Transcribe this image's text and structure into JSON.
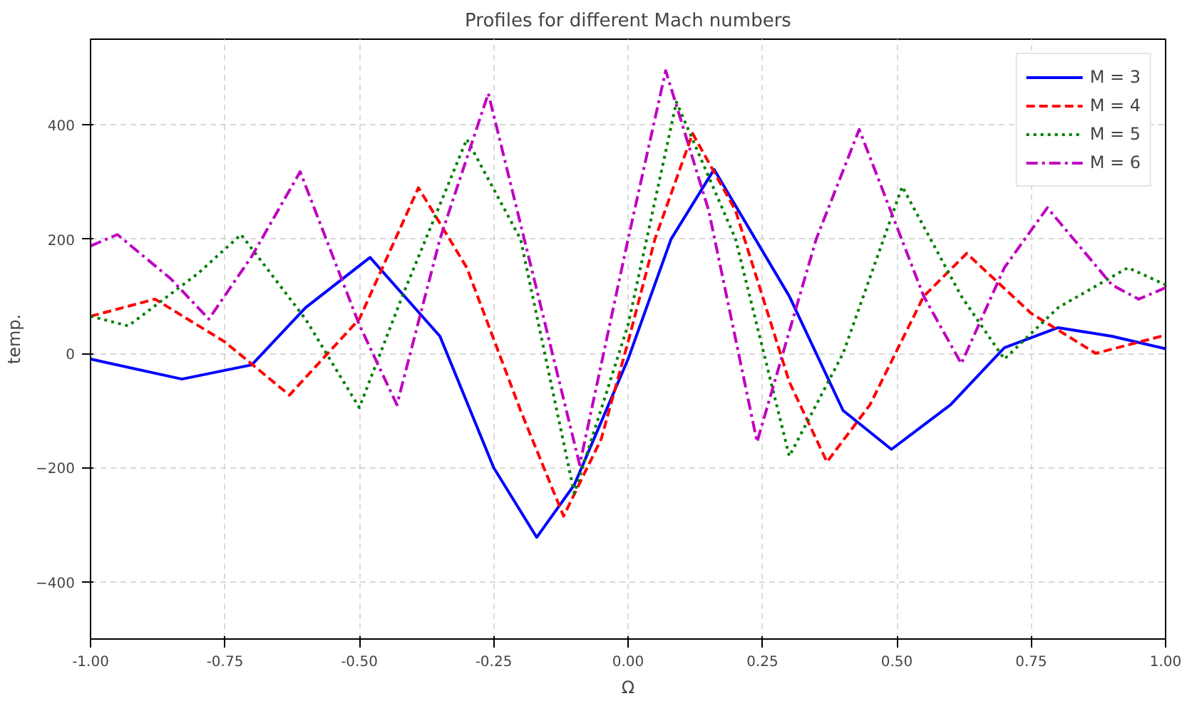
{
  "chart_data": {
    "type": "line",
    "title": "Profiles for different Mach numbers",
    "xlabel": "Ω",
    "ylabel": "temp.",
    "xlim": [
      -1,
      1
    ],
    "ylim": [
      -500,
      550
    ],
    "xticks": [
      {
        "value": -1,
        "label": "-1.00"
      },
      {
        "value": -0.75,
        "label": "-0.75"
      },
      {
        "value": -0.5,
        "label": "-0.50"
      },
      {
        "value": -0.25,
        "label": "-0.25"
      },
      {
        "value": 0,
        "label": "0.00"
      },
      {
        "value": 0.25,
        "label": "0.25"
      },
      {
        "value": 0.5,
        "label": "0.50"
      },
      {
        "value": 0.75,
        "label": "0.75"
      },
      {
        "value": 1,
        "label": "1.00"
      }
    ],
    "yticks": [
      -400,
      -200,
      0,
      200,
      400
    ],
    "grid": true,
    "legend": "top right",
    "marker": "none",
    "series": [
      {
        "name": "M = 3",
        "color": "#0000ff",
        "line_style": "solid",
        "x": [
          -1,
          -0.83,
          -0.7,
          -0.6,
          -0.48,
          -0.35,
          -0.25,
          -0.17,
          -0.1,
          0,
          0.08,
          0.16,
          0.3,
          0.4,
          0.49,
          0.6,
          0.7,
          0.8,
          0.9,
          1
        ],
        "values": [
          -10,
          -45,
          -20,
          80,
          168,
          30,
          -200,
          -322,
          -230,
          -10,
          200,
          322,
          100,
          -100,
          -168,
          -90,
          10,
          45,
          30,
          8
        ]
      },
      {
        "name": "M = 4",
        "color": "#ff0000",
        "line_style": "dashed",
        "x": [
          -1,
          -0.88,
          -0.75,
          -0.63,
          -0.5,
          -0.39,
          -0.3,
          -0.2,
          -0.12,
          -0.05,
          0,
          0.05,
          0.12,
          0.2,
          0.3,
          0.37,
          0.45,
          0.55,
          0.63,
          0.75,
          0.87,
          1
        ],
        "values": [
          65,
          95,
          20,
          -73,
          60,
          290,
          150,
          -100,
          -285,
          -150,
          20,
          200,
          385,
          250,
          -50,
          -190,
          -90,
          100,
          175,
          70,
          0,
          32
        ]
      },
      {
        "name": "M = 5",
        "color": "#008000",
        "line_style": "dotted",
        "x": [
          -1,
          -0.93,
          -0.8,
          -0.72,
          -0.6,
          -0.5,
          -0.42,
          -0.3,
          -0.2,
          -0.1,
          0,
          0.09,
          0.2,
          0.3,
          0.4,
          0.51,
          0.62,
          0.7,
          0.8,
          0.93,
          1
        ],
        "values": [
          65,
          48,
          140,
          208,
          60,
          -95,
          100,
          375,
          200,
          -245,
          50,
          440,
          200,
          -180,
          0,
          292,
          100,
          -10,
          80,
          150,
          120
        ]
      },
      {
        "name": "M = 6",
        "color": "#bf00bf",
        "line_style": "dashdot",
        "x": [
          -1,
          -0.95,
          -0.85,
          -0.78,
          -0.7,
          -0.61,
          -0.5,
          -0.43,
          -0.35,
          -0.26,
          -0.18,
          -0.09,
          0,
          0.07,
          0.15,
          0.24,
          0.35,
          0.43,
          0.55,
          0.62,
          0.7,
          0.78,
          0.9,
          0.95,
          1
        ],
        "values": [
          188,
          208,
          130,
          60,
          170,
          318,
          50,
          -90,
          200,
          455,
          150,
          -195,
          200,
          495,
          250,
          -155,
          200,
          392,
          100,
          -18,
          150,
          255,
          120,
          95,
          115
        ]
      }
    ]
  }
}
